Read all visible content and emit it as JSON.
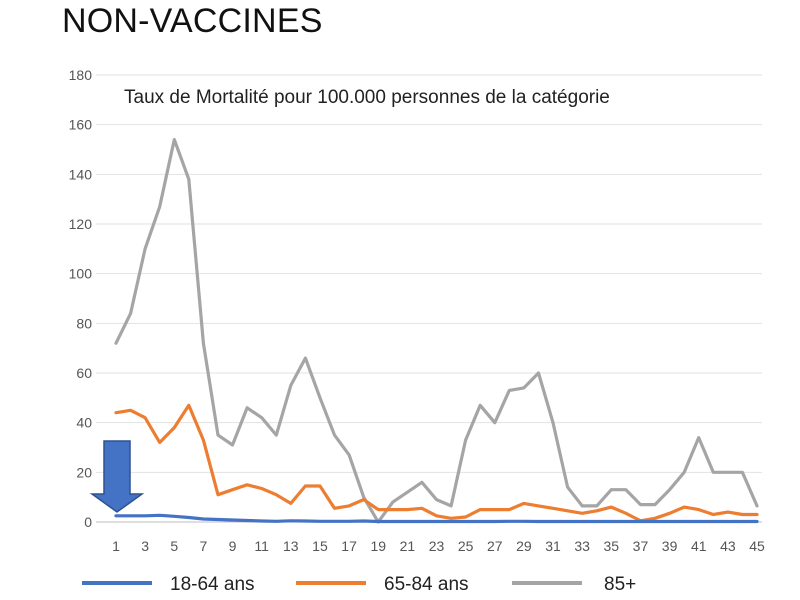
{
  "heading": "NON-VACCINES",
  "chart_data": {
    "type": "line",
    "title": "Taux de Mortalité pour 100.000 personnes de la catégorie",
    "xlabel": "",
    "ylabel": "",
    "ylim": [
      0,
      180
    ],
    "yticks": [
      0,
      20,
      40,
      60,
      80,
      100,
      120,
      140,
      160,
      180
    ],
    "x": [
      1,
      2,
      3,
      4,
      5,
      6,
      7,
      8,
      9,
      10,
      11,
      12,
      13,
      14,
      15,
      16,
      17,
      18,
      19,
      20,
      21,
      22,
      23,
      24,
      25,
      26,
      27,
      28,
      29,
      30,
      31,
      32,
      33,
      34,
      35,
      36,
      37,
      38,
      39,
      40,
      41,
      42,
      43,
      44,
      45
    ],
    "xtick_labels": [
      "1",
      "3",
      "5",
      "7",
      "9",
      "11",
      "13",
      "15",
      "17",
      "19",
      "21",
      "23",
      "25",
      "27",
      "29",
      "31",
      "33",
      "35",
      "37",
      "39",
      "41",
      "43",
      "45"
    ],
    "grid": "horizontal",
    "legend_position": "bottom",
    "annotation": "down-arrow at week 1",
    "series": [
      {
        "name": "18-64 ans",
        "color": "#4472C4",
        "values": [
          2.5,
          2.5,
          2.5,
          2.7,
          2.3,
          1.8,
          1.2,
          1,
          0.8,
          0.6,
          0.4,
          0.3,
          0.5,
          0.4,
          0.3,
          0.3,
          0.3,
          0.4,
          0.2,
          0.2,
          0.2,
          0.2,
          0.2,
          0.2,
          0.2,
          0.2,
          0.2,
          0.3,
          0.3,
          0.2,
          0.2,
          0.2,
          0.2,
          0.2,
          0.2,
          0.2,
          0.2,
          0.2,
          0.2,
          0.2,
          0.2,
          0.2,
          0.2,
          0.2,
          0.2
        ]
      },
      {
        "name": "65-84 ans",
        "color": "#ED7D31",
        "values": [
          44,
          45,
          42,
          32,
          38,
          47,
          33,
          11,
          13,
          15,
          13.5,
          11,
          7.5,
          14.5,
          14.5,
          5.5,
          6.5,
          9,
          5,
          5,
          5,
          5.5,
          2.5,
          1.5,
          2,
          5,
          5,
          5,
          7.5,
          6.5,
          5.5,
          4.5,
          3.5,
          4.5,
          6,
          3.5,
          0.5,
          1.5,
          3.5,
          6,
          5,
          3,
          4,
          3,
          3
        ]
      },
      {
        "name": "85+",
        "color": "#A5A5A5",
        "values": [
          72,
          84,
          110,
          127,
          154,
          138,
          72,
          35,
          31,
          46,
          42,
          35,
          55,
          66,
          50,
          35,
          27,
          10,
          0,
          8,
          12,
          16,
          9,
          6.5,
          33,
          47,
          40,
          53,
          54,
          60,
          40,
          14,
          6.5,
          6.5,
          13,
          13,
          7,
          7,
          13,
          20,
          34,
          20,
          20,
          20,
          6.5
        ]
      }
    ]
  }
}
